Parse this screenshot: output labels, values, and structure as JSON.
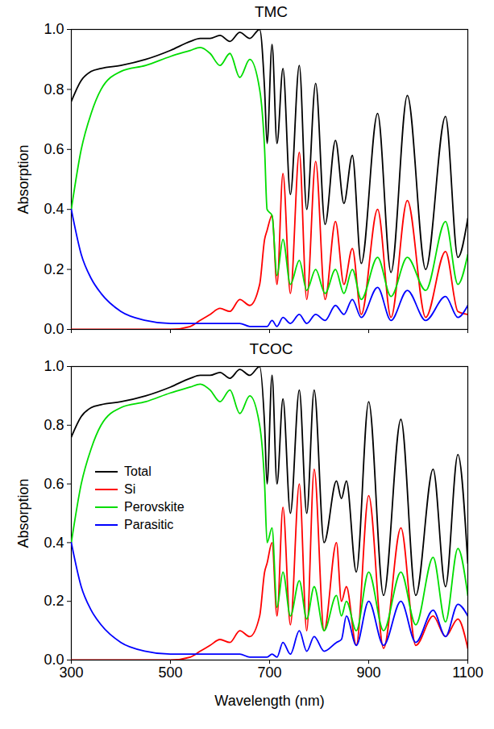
{
  "chart_data": [
    {
      "type": "line",
      "title": "TMC",
      "ylabel": "Absorption",
      "xlim": [
        300,
        1100
      ],
      "xticks": [
        300,
        500,
        700,
        900,
        1100
      ],
      "ylim": [
        0,
        1
      ],
      "yticks": [
        {
          "value": 0,
          "label": "0.0"
        },
        0.2,
        0.4,
        0.6,
        0.8,
        {
          "value": 1,
          "label": "1.0"
        }
      ],
      "tick_labels": "y",
      "x": [
        300,
        320,
        340,
        360,
        400,
        450,
        500,
        540,
        560,
        580,
        600,
        620,
        640,
        660,
        680,
        690,
        695,
        705,
        715,
        727,
        742,
        760,
        775,
        793,
        812,
        833,
        850,
        867,
        885,
        918,
        945,
        978,
        1015,
        1055,
        1080,
        1100
      ],
      "series": [
        {
          "name": "Total",
          "color": "#000000",
          "values": [
            0.76,
            0.83,
            0.86,
            0.87,
            0.88,
            0.9,
            0.93,
            0.96,
            0.97,
            0.97,
            0.98,
            0.96,
            0.99,
            0.97,
            1.0,
            0.8,
            0.62,
            0.95,
            0.62,
            0.87,
            0.45,
            0.88,
            0.4,
            0.82,
            0.35,
            0.63,
            0.42,
            0.58,
            0.22,
            0.72,
            0.19,
            0.78,
            0.2,
            0.71,
            0.24,
            0.37
          ]
        },
        {
          "name": "Si",
          "color": "#ff0000",
          "values": [
            0,
            0,
            0,
            0,
            0,
            0,
            0,
            0.01,
            0.03,
            0.05,
            0.07,
            0.06,
            0.1,
            0.08,
            0.15,
            0.3,
            0.33,
            0.38,
            0.15,
            0.52,
            0.12,
            0.59,
            0.1,
            0.56,
            0.1,
            0.36,
            0.15,
            0.27,
            0.05,
            0.4,
            0.04,
            0.43,
            0.04,
            0.26,
            0.06,
            0.05
          ]
        },
        {
          "name": "Perovskite",
          "color": "#00dd00",
          "values": [
            0.4,
            0.6,
            0.72,
            0.8,
            0.86,
            0.88,
            0.91,
            0.93,
            0.94,
            0.92,
            0.88,
            0.92,
            0.84,
            0.9,
            0.8,
            0.6,
            0.4,
            0.38,
            0.18,
            0.3,
            0.15,
            0.23,
            0.13,
            0.2,
            0.12,
            0.2,
            0.12,
            0.2,
            0.1,
            0.24,
            0.11,
            0.24,
            0.13,
            0.36,
            0.15,
            0.25
          ]
        },
        {
          "name": "Parasitic",
          "color": "#0000ff",
          "values": [
            0.4,
            0.25,
            0.17,
            0.12,
            0.06,
            0.03,
            0.02,
            0.02,
            0.02,
            0.02,
            0.02,
            0.02,
            0.02,
            0.01,
            0.01,
            0.01,
            0.01,
            0.03,
            0.01,
            0.04,
            0.02,
            0.05,
            0.02,
            0.05,
            0.03,
            0.08,
            0.05,
            0.1,
            0.04,
            0.14,
            0.03,
            0.13,
            0.03,
            0.11,
            0.04,
            0.08
          ]
        }
      ]
    },
    {
      "type": "line",
      "title": "TCOC",
      "xlabel": "Wavelength (nm)",
      "ylabel": "Absorption",
      "xlim": [
        300,
        1100
      ],
      "xticks": [
        300,
        500,
        700,
        900,
        1100
      ],
      "ylim": [
        0,
        1
      ],
      "yticks": [
        {
          "value": 0,
          "label": "0.0"
        },
        0.2,
        0.4,
        0.6,
        0.8,
        {
          "value": 1,
          "label": "1.0"
        }
      ],
      "legend": "left",
      "x": [
        300,
        320,
        340,
        360,
        400,
        450,
        500,
        540,
        560,
        580,
        600,
        620,
        640,
        660,
        680,
        690,
        695,
        705,
        715,
        727,
        742,
        760,
        775,
        790,
        810,
        835,
        845,
        855,
        875,
        900,
        930,
        965,
        995,
        1030,
        1055,
        1080,
        1100
      ],
      "series": [
        {
          "name": "Total",
          "color": "#000000",
          "values": [
            0.76,
            0.83,
            0.86,
            0.87,
            0.88,
            0.9,
            0.93,
            0.96,
            0.97,
            0.97,
            0.98,
            0.96,
            0.99,
            0.97,
            1.0,
            0.8,
            0.6,
            0.97,
            0.6,
            0.89,
            0.5,
            0.92,
            0.5,
            0.92,
            0.4,
            0.61,
            0.55,
            0.61,
            0.3,
            0.88,
            0.22,
            0.82,
            0.22,
            0.65,
            0.25,
            0.7,
            0.33
          ]
        },
        {
          "name": "Si",
          "color": "#ff0000",
          "values": [
            0,
            0,
            0,
            0,
            0,
            0,
            0,
            0.01,
            0.03,
            0.05,
            0.07,
            0.06,
            0.1,
            0.08,
            0.15,
            0.3,
            0.33,
            0.4,
            0.15,
            0.52,
            0.12,
            0.6,
            0.1,
            0.65,
            0.1,
            0.4,
            0.2,
            0.25,
            0.05,
            0.56,
            0.04,
            0.45,
            0.05,
            0.15,
            0.08,
            0.14,
            0.04
          ]
        },
        {
          "name": "Perovskite",
          "color": "#00dd00",
          "values": [
            0.4,
            0.6,
            0.72,
            0.8,
            0.86,
            0.88,
            0.91,
            0.93,
            0.94,
            0.92,
            0.88,
            0.92,
            0.84,
            0.9,
            0.8,
            0.6,
            0.4,
            0.45,
            0.18,
            0.3,
            0.15,
            0.27,
            0.14,
            0.25,
            0.1,
            0.22,
            0.15,
            0.2,
            0.1,
            0.3,
            0.1,
            0.3,
            0.12,
            0.35,
            0.13,
            0.38,
            0.22
          ]
        },
        {
          "name": "Parasitic",
          "color": "#0000ff",
          "values": [
            0.4,
            0.25,
            0.17,
            0.12,
            0.06,
            0.03,
            0.02,
            0.02,
            0.02,
            0.02,
            0.02,
            0.02,
            0.02,
            0.01,
            0.01,
            0.01,
            0.01,
            0.02,
            0.01,
            0.06,
            0.02,
            0.1,
            0.03,
            0.08,
            0.03,
            0.06,
            0.07,
            0.15,
            0.05,
            0.2,
            0.05,
            0.2,
            0.06,
            0.17,
            0.08,
            0.19,
            0.15
          ]
        }
      ]
    }
  ]
}
